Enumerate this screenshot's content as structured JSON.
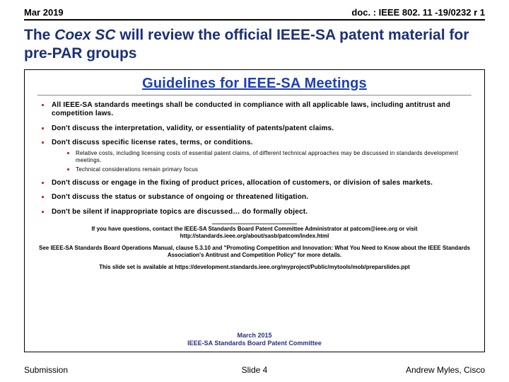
{
  "header": {
    "left": "Mar 2019",
    "right": "doc. : IEEE 802. 11 -19/0232 r 1"
  },
  "title": {
    "prefix": "The ",
    "italic": "Coex SC",
    "rest": " will review the official IEEE-SA patent material for pre-PAR groups"
  },
  "embed": {
    "title": "Guidelines for IEEE-SA Meetings",
    "bullets": [
      {
        "text": "All IEEE-SA standards meetings shall be conducted in compliance with all applicable laws, including antitrust and competition laws."
      },
      {
        "text": "Don't discuss the interpretation, validity, or essentiality of patents/patent claims."
      },
      {
        "text": "Don't discuss specific license rates, terms, or conditions.",
        "sub": [
          "Relative costs, including licensing costs of essential patent claims, of different technical approaches may be discussed in standards development meetings.",
          "Technical considerations remain primary focus"
        ]
      },
      {
        "text": "Don't discuss or engage in the fixing of product prices, allocation of customers, or division of sales markets."
      },
      {
        "text": "Don't discuss the status or substance of ongoing or threatened litigation."
      },
      {
        "text": "Don't be silent if inappropriate topics are discussed… do formally object."
      }
    ],
    "info1": "If you have questions, contact the IEEE-SA Standards Board Patent Committee Administrator at patcom@ieee.org or visit http://standards.ieee.org/about/sasb/patcom/index.html",
    "info2": "See IEEE-SA Standards Board Operations Manual, clause 5.3.10 and \"Promoting Competition and Innovation: What You Need to Know about the IEEE Standards Association's Antitrust and Competition Policy\" for more details.",
    "info3": "This slide set is available at https://development.standards.ieee.org/myproject/Public/mytools/mob/preparslides.ppt",
    "footer_line1": "March 2015",
    "footer_line2": "IEEE-SA Standards Board Patent Committee"
  },
  "footer": {
    "left": "Submission",
    "center": "Slide 4",
    "right": "Andrew Myles, Cisco"
  }
}
